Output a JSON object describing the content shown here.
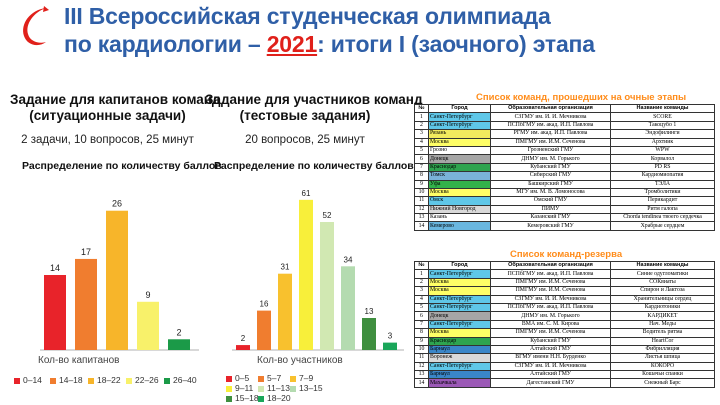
{
  "title": {
    "line1": "III Всероссийская студенческая олимпиада",
    "line2_prefix": "по кардиологии – ",
    "year": "2021",
    "line2_suffix": ": итоги I (заочного) этапа"
  },
  "colors": {
    "title": "#2f5fa7",
    "year": "#e0201a",
    "table_title": "#ff8c1a"
  },
  "left_section": {
    "heading1": "Задание для капитанов команд",
    "heading2": "(ситуационные задачи)",
    "subtitle": "2 задачи, 10 вопросов, 25 минут",
    "chart_title": "Распределение по количеству баллов"
  },
  "right_section": {
    "heading1": "Задание для участников команд",
    "heading2": "(тестовые задания)",
    "subtitle": "20 вопросов, 25 минут",
    "chart_title": "Распределение по количеству баллов"
  },
  "chart_data": [
    {
      "type": "bar",
      "xlabel": "Кол-во капитанов",
      "categories": [
        "0–14",
        "14–18",
        "18–22",
        "22–26",
        "26–40"
      ],
      "values": [
        14,
        17,
        26,
        9,
        2
      ],
      "colors": [
        "#e8232a",
        "#f07d2f",
        "#f7b52a",
        "#f8f16a",
        "#1b9a48"
      ],
      "ylim": [
        0,
        28
      ],
      "grid": false,
      "legend": "bottom"
    },
    {
      "type": "bar",
      "xlabel": "Кол-во участников",
      "categories": [
        "0–5",
        "5–7",
        "7–9",
        "9–11",
        "11–13",
        "13–15",
        "15–18",
        "18–20"
      ],
      "values": [
        2,
        16,
        31,
        61,
        52,
        34,
        13,
        3
      ],
      "colors": [
        "#e8232a",
        "#f07d2f",
        "#f8c12e",
        "#f8ef3a",
        "#d1e8b2",
        "#b4dbb0",
        "#3f8f3f",
        "#1aa65a"
      ],
      "ylim": [
        0,
        65
      ],
      "grid": false,
      "legend": "bottom"
    }
  ],
  "table1": {
    "title": "Список команд, прошедших на очные этапы",
    "headers": [
      "№",
      "Город",
      "Образовательная организация",
      "Название команды"
    ],
    "rows": [
      {
        "n": "1",
        "city": "Санкт-Петербург",
        "org": "СЗГМУ им. И. И. Мечникова",
        "team": "SCORE",
        "color": "#5fc7e8"
      },
      {
        "n": "2",
        "city": "Санкт-Петербург",
        "org": "ПСПбГМУ им. акад. И.П. Павлова",
        "team": "Такоцубо 1",
        "color": "#5fc7e8"
      },
      {
        "n": "3",
        "city": "Рязань",
        "org": "РГМУ им. акад. И.П. Павлова",
        "team": "Эндофилинги",
        "color": "#f2ea5e"
      },
      {
        "n": "4",
        "city": "Москва",
        "org": "ПМГМУ им. И.М. Сеченова",
        "team": "Архтиик",
        "color": "#ffff66"
      },
      {
        "n": "5",
        "city": "Грозно",
        "org": "Грозненский ГМУ",
        "team": "WPW",
        "color": "#ffffff"
      },
      {
        "n": "6",
        "city": "Донецк",
        "org": "ДНМУ им. М. Горького",
        "team": "Корвалол",
        "color": "#a6a6a6"
      },
      {
        "n": "7",
        "city": "Краснодар",
        "org": "Кубанский ГМУ",
        "team": "PD RS",
        "color": "#2ea44f"
      },
      {
        "n": "8",
        "city": "Томск",
        "org": "Сибирский ГМУ",
        "team": "Кардиомиопатия",
        "color": "#7ab3d9"
      },
      {
        "n": "9",
        "city": "Уфа",
        "org": "Башкирский ГМУ",
        "team": "ТЭЛА",
        "color": "#33b24a"
      },
      {
        "n": "10",
        "city": "Москва",
        "org": "МГУ им. М. В. Ломоносова",
        "team": "Тромболитики",
        "color": "#ffff66"
      },
      {
        "n": "11",
        "city": "Омск",
        "org": "Омский ГМУ",
        "team": "Перикардит",
        "color": "#5fc7e8"
      },
      {
        "n": "12",
        "city": "Нижний Новгород",
        "org": "ПИМУ",
        "team": "Ритм галопа",
        "color": "#d9d9d9"
      },
      {
        "n": "13",
        "city": "Казань",
        "org": "Казанский ГМУ",
        "team": "Chorda tendinea твоего сердечка",
        "color": "#ffffff"
      },
      {
        "n": "14",
        "city": "Кемерово",
        "org": "Кемеровский ГМУ",
        "team": "Храбрые сердцем",
        "color": "#6ab7e0"
      }
    ]
  },
  "table2": {
    "title": "Список команд-резерва",
    "headers": [
      "№",
      "Город",
      "Образовательная организация",
      "Название команды"
    ],
    "rows": [
      {
        "n": "1",
        "city": "Санкт-Петербург",
        "org": "ПСПбГМУ им. акад. И.П. Павлова",
        "team": "Синие одугломатики",
        "color": "#5fc7e8"
      },
      {
        "n": "2",
        "city": "Москва",
        "org": "ПМГМУ им. И.М. Сеченова",
        "team": "СОКвиаты",
        "color": "#ffff66"
      },
      {
        "n": "3",
        "city": "Москва",
        "org": "ПМГМУ им. И.М. Сеченова",
        "team": "Спирон и Лактоза",
        "color": "#ffff66"
      },
      {
        "n": "4",
        "city": "Санкт-Петербург",
        "org": "СЗГМУ им. И. И. Мечникова",
        "team": "Хранительницы сердец",
        "color": "#5fc7e8"
      },
      {
        "n": "5",
        "city": "Санкт-Петербург",
        "org": "ПСПбГМУ им. акад. И.П. Павлова",
        "team": "Кардиотоники",
        "color": "#5fc7e8"
      },
      {
        "n": "6",
        "city": "Донецк",
        "org": "ДНМУ им. М. Горького",
        "team": "КАРДИКЕТ",
        "color": "#a6a6a6"
      },
      {
        "n": "7",
        "city": "Санкт-Петербург",
        "org": "ВМА им. С. М. Кирова",
        "team": "Нач. Меды",
        "color": "#5fc7e8"
      },
      {
        "n": "8",
        "city": "Москва",
        "org": "ПМГМУ им. И.М. Сеченова",
        "team": "Водитель ритма",
        "color": "#ffff66"
      },
      {
        "n": "9",
        "city": "Краснодар",
        "org": "Кубанский ГМУ",
        "team": "HeartCor",
        "color": "#2ea44f"
      },
      {
        "n": "10",
        "city": "Барнаул",
        "org": "Алтайский ГМУ",
        "team": "Фибрилляция",
        "color": "#3a86c8"
      },
      {
        "n": "11",
        "city": "Воронеж",
        "org": "ВГМУ имени Н.Н. Бурденко",
        "team": "Листья шпица",
        "color": "#d9d9d9"
      },
      {
        "n": "12",
        "city": "Санкт-Петербург",
        "org": "СЗГМУ им. И. И. Мечникова",
        "team": "КОКОРО",
        "color": "#5fc7e8"
      },
      {
        "n": "13",
        "city": "Барнаул",
        "org": "Алтайский ГМУ",
        "team": "Кошачьи спанки",
        "color": "#3a86c8"
      },
      {
        "n": "14",
        "city": "Махачкала",
        "org": "Дагестанский ГМУ",
        "team": "Снежный Барс",
        "color": "#9b59b6"
      }
    ]
  }
}
